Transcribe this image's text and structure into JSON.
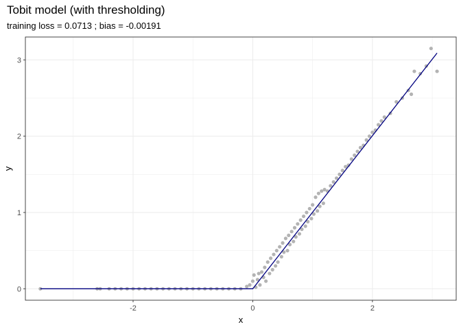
{
  "chart_data": {
    "type": "scatter",
    "title": "Tobit model (with thresholding)",
    "subtitle": "training loss = 0.0713 ; bias = -0.00191",
    "xlabel": "x",
    "ylabel": "y",
    "xlim": [
      -3.8,
      3.4
    ],
    "ylim": [
      -0.15,
      3.3
    ],
    "x_ticks": [
      -2,
      0,
      2
    ],
    "x_tick_labels": [
      "-2",
      "0",
      "2"
    ],
    "y_ticks": [
      0,
      1,
      2,
      3
    ],
    "y_tick_labels": [
      "0",
      "1",
      "2",
      "3"
    ],
    "grid": true,
    "legend": "none",
    "colors": {
      "points": "#b3b3b3",
      "line": "#000080",
      "grid": "#ebebeb",
      "panel_border": "#333333"
    },
    "fit_line": {
      "name": "",
      "x": [
        -3.55,
        0.0,
        3.08
      ],
      "y": [
        0.0,
        0.0,
        3.09
      ]
    },
    "series": [
      {
        "name": "",
        "x": [
          -3.55,
          -2.6,
          -2.55,
          -2.4,
          -2.3,
          -2.2,
          -2.1,
          -2.0,
          -1.9,
          -1.8,
          -1.7,
          -1.6,
          -1.5,
          -1.4,
          -1.3,
          -1.2,
          -1.1,
          -1.0,
          -0.9,
          -0.8,
          -0.7,
          -0.6,
          -0.5,
          -0.4,
          -0.3,
          -0.2,
          -0.1,
          -0.05,
          0.0,
          0.02,
          0.05,
          0.08,
          0.1,
          0.12,
          0.15,
          0.18,
          0.2,
          0.22,
          0.25,
          0.28,
          0.3,
          0.33,
          0.35,
          0.38,
          0.4,
          0.42,
          0.45,
          0.48,
          0.5,
          0.52,
          0.55,
          0.58,
          0.6,
          0.62,
          0.65,
          0.68,
          0.7,
          0.72,
          0.75,
          0.78,
          0.8,
          0.82,
          0.85,
          0.88,
          0.9,
          0.92,
          0.95,
          0.98,
          1.0,
          1.02,
          1.05,
          1.08,
          1.1,
          1.12,
          1.15,
          1.18,
          1.2,
          1.25,
          1.3,
          1.35,
          1.4,
          1.45,
          1.5,
          1.55,
          1.6,
          1.65,
          1.7,
          1.75,
          1.8,
          1.85,
          1.9,
          1.95,
          2.0,
          2.05,
          2.1,
          2.15,
          2.2,
          2.3,
          2.4,
          2.5,
          2.6,
          2.65,
          2.7,
          2.8,
          2.9,
          2.98,
          3.08
        ],
        "y": [
          0.0,
          0.0,
          0.0,
          0.0,
          0.0,
          0.0,
          0.0,
          0.0,
          0.0,
          0.0,
          0.0,
          0.0,
          0.0,
          0.0,
          0.0,
          0.0,
          0.0,
          0.0,
          0.0,
          0.0,
          0.0,
          0.0,
          0.0,
          0.0,
          0.0,
          0.0,
          0.03,
          0.05,
          0.1,
          0.18,
          0.02,
          0.12,
          0.2,
          0.05,
          0.22,
          0.15,
          0.28,
          0.1,
          0.35,
          0.2,
          0.4,
          0.25,
          0.45,
          0.3,
          0.5,
          0.35,
          0.55,
          0.42,
          0.6,
          0.48,
          0.66,
          0.5,
          0.7,
          0.58,
          0.75,
          0.62,
          0.8,
          0.68,
          0.85,
          0.72,
          0.9,
          0.78,
          0.95,
          0.82,
          1.0,
          0.88,
          1.05,
          0.92,
          1.1,
          0.98,
          1.2,
          1.02,
          1.25,
          1.08,
          1.28,
          1.12,
          1.3,
          1.28,
          1.35,
          1.4,
          1.45,
          1.5,
          1.55,
          1.6,
          1.62,
          1.7,
          1.75,
          1.8,
          1.85,
          1.88,
          1.95,
          2.0,
          2.05,
          2.08,
          2.15,
          2.2,
          2.25,
          2.3,
          2.45,
          2.5,
          2.6,
          2.55,
          2.85,
          2.82,
          2.92,
          3.15,
          2.85
        ]
      }
    ]
  }
}
